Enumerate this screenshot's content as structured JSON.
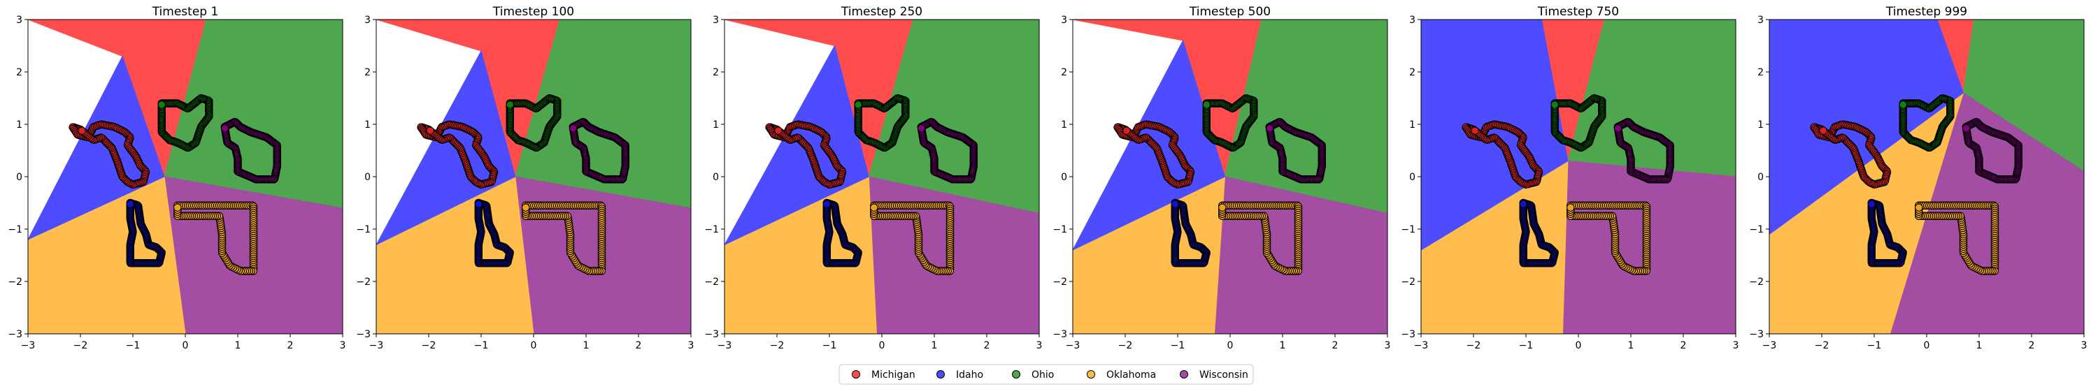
{
  "chart_data": {
    "type": "scatter",
    "subtype": "decision-boundary-over-timesteps",
    "panels": [
      {
        "title": "Timestep 1",
        "timestep": 1
      },
      {
        "title": "Timestep 100",
        "timestep": 100
      },
      {
        "title": "Timestep 250",
        "timestep": 250
      },
      {
        "title": "Timestep 500",
        "timestep": 500
      },
      {
        "title": "Timestep 750",
        "timestep": 750
      },
      {
        "title": "Timestep 999",
        "timestep": 999
      }
    ],
    "xlim": [
      -3,
      3
    ],
    "ylim": [
      -3,
      3
    ],
    "xticks": [
      -3,
      -2,
      -1,
      0,
      1,
      2,
      3
    ],
    "yticks": [
      -3,
      -2,
      -1,
      0,
      1,
      2,
      3
    ],
    "grid": false,
    "legend": {
      "placement": "bottom-center",
      "entries": [
        "Michigan",
        "Idaho",
        "Ohio",
        "Oklahoma",
        "Wisconsin"
      ]
    },
    "classes": [
      {
        "name": "Michigan",
        "region_color": "#ff4d4d",
        "point_color": "#e02020"
      },
      {
        "name": "Idaho",
        "region_color": "#4d4dff",
        "point_color": "#1010d0"
      },
      {
        "name": "Ohio",
        "region_color": "#4ea64e",
        "point_color": "#108010"
      },
      {
        "name": "Oklahoma",
        "region_color": "#ffbd4d",
        "point_color": "#f0a020"
      },
      {
        "name": "Wisconsin",
        "region_color": "#a34da3",
        "point_color": "#800080"
      }
    ],
    "shapes": {
      "Michigan": [
        [
          -2.0,
          0.9
        ],
        [
          -2.15,
          0.95
        ],
        [
          -2.05,
          0.8
        ],
        [
          -1.85,
          0.75
        ],
        [
          -1.75,
          0.95
        ],
        [
          -1.6,
          1.0
        ],
        [
          -1.35,
          0.95
        ],
        [
          -1.15,
          0.85
        ],
        [
          -1.05,
          0.75
        ],
        [
          -1.1,
          0.6
        ],
        [
          -0.95,
          0.4
        ],
        [
          -0.85,
          0.2
        ],
        [
          -0.75,
          0.1
        ],
        [
          -0.8,
          -0.1
        ],
        [
          -1.0,
          -0.15
        ],
        [
          -1.1,
          -0.1
        ],
        [
          -1.2,
          0.0
        ],
        [
          -1.3,
          0.3
        ],
        [
          -1.4,
          0.55
        ],
        [
          -1.6,
          0.75
        ],
        [
          -1.75,
          0.7
        ],
        [
          -2.0,
          0.9
        ]
      ],
      "Idaho": [
        [
          -1.05,
          -0.5
        ],
        [
          -0.9,
          -0.55
        ],
        [
          -0.85,
          -0.9
        ],
        [
          -0.75,
          -1.1
        ],
        [
          -0.7,
          -1.3
        ],
        [
          -0.55,
          -1.35
        ],
        [
          -0.45,
          -1.45
        ],
        [
          -0.5,
          -1.65
        ],
        [
          -0.75,
          -1.65
        ],
        [
          -1.05,
          -1.65
        ],
        [
          -1.05,
          -1.3
        ],
        [
          -1.0,
          -1.05
        ],
        [
          -1.05,
          -0.8
        ],
        [
          -1.05,
          -0.5
        ]
      ],
      "Ohio": [
        [
          -0.45,
          1.4
        ],
        [
          -0.15,
          1.4
        ],
        [
          0.05,
          1.3
        ],
        [
          0.3,
          1.5
        ],
        [
          0.45,
          1.45
        ],
        [
          0.45,
          1.15
        ],
        [
          0.3,
          0.95
        ],
        [
          0.2,
          0.65
        ],
        [
          0.05,
          0.55
        ],
        [
          -0.15,
          0.65
        ],
        [
          -0.3,
          0.7
        ],
        [
          -0.45,
          0.85
        ],
        [
          -0.45,
          1.1
        ],
        [
          -0.45,
          1.4
        ]
      ],
      "Oklahoma": [
        [
          -0.15,
          -0.55
        ],
        [
          0.3,
          -0.55
        ],
        [
          0.8,
          -0.55
        ],
        [
          1.3,
          -0.55
        ],
        [
          1.3,
          -0.75
        ],
        [
          1.3,
          -1.05
        ],
        [
          1.3,
          -1.4
        ],
        [
          1.3,
          -1.8
        ],
        [
          1.05,
          -1.8
        ],
        [
          0.85,
          -1.7
        ],
        [
          0.7,
          -1.45
        ],
        [
          0.7,
          -1.1
        ],
        [
          0.65,
          -0.75
        ],
        [
          0.2,
          -0.75
        ],
        [
          -0.15,
          -0.75
        ],
        [
          -0.15,
          -0.55
        ]
      ],
      "Wisconsin": [
        [
          0.75,
          0.95
        ],
        [
          0.95,
          1.05
        ],
        [
          1.05,
          0.95
        ],
        [
          1.25,
          0.85
        ],
        [
          1.55,
          0.75
        ],
        [
          1.75,
          0.6
        ],
        [
          1.75,
          0.2
        ],
        [
          1.7,
          -0.05
        ],
        [
          1.35,
          -0.05
        ],
        [
          1.0,
          0.1
        ],
        [
          1.0,
          0.35
        ],
        [
          0.95,
          0.55
        ],
        [
          0.8,
          0.65
        ],
        [
          0.75,
          0.95
        ]
      ]
    },
    "boundaries": [
      {
        "apex": [
          -0.4,
          0.0
        ],
        "wedges": [
          [
            -1.2,
            2.3
          ],
          [
            0.4,
            3.0
          ],
          [
            3.0,
            -0.6
          ],
          [
            0.0,
            -3.0
          ],
          [
            -3.0,
            -1.2
          ]
        ]
      },
      {
        "apex": [
          -0.35,
          0.0
        ],
        "wedges": [
          [
            -1.0,
            2.4
          ],
          [
            0.5,
            3.0
          ],
          [
            3.0,
            -0.6
          ],
          [
            0.0,
            -3.0
          ],
          [
            -3.0,
            -1.3
          ]
        ]
      },
      {
        "apex": [
          -0.25,
          0.0
        ],
        "wedges": [
          [
            -0.9,
            2.5
          ],
          [
            0.6,
            3.0
          ],
          [
            3.0,
            -0.7
          ],
          [
            -0.1,
            -3.0
          ],
          [
            -3.0,
            -1.3
          ]
        ]
      },
      {
        "apex": [
          -0.1,
          0.0
        ],
        "wedges": [
          [
            -0.9,
            2.6
          ],
          [
            0.6,
            3.0
          ],
          [
            3.0,
            -0.7
          ],
          [
            -0.3,
            -3.0
          ],
          [
            -3.0,
            -1.4
          ]
        ]
      },
      {
        "apex": [
          -0.2,
          0.3
        ],
        "wedges": [
          [
            -0.7,
            3.0
          ],
          [
            0.5,
            3.0
          ],
          [
            3.0,
            0.0
          ],
          [
            -0.3,
            -3.0
          ],
          [
            -3.0,
            -1.4
          ]
        ]
      },
      {
        "apex": [
          0.7,
          1.6
        ],
        "wedges": [
          [
            0.2,
            3.0
          ],
          [
            0.9,
            3.0
          ],
          [
            3.0,
            0.1
          ],
          [
            -0.7,
            -3.0
          ],
          [
            -3.0,
            -1.1
          ]
        ]
      }
    ]
  }
}
